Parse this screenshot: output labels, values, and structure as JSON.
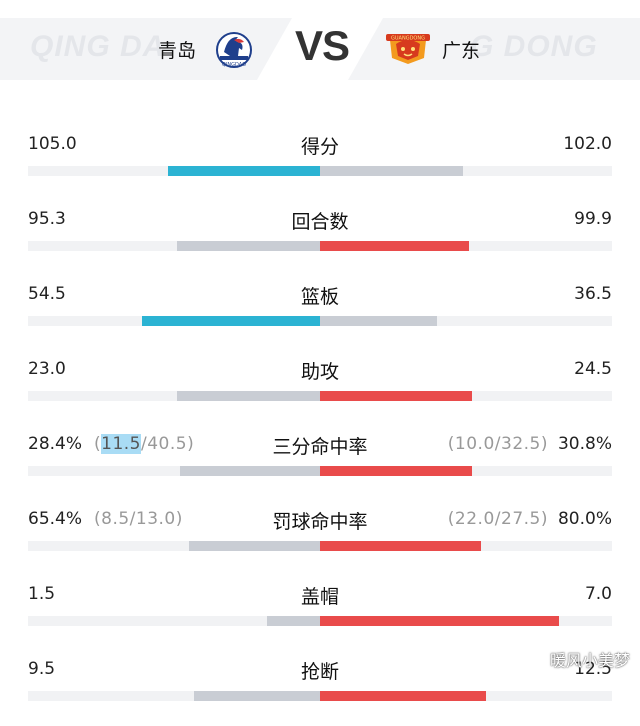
{
  "header": {
    "home_team": "青岛",
    "away_team": "广东",
    "vs": "VS",
    "home_watermark": "QING DA",
    "away_watermark": "G DONG",
    "home_logo_text": "QINGDAO",
    "away_logo_text": "GUANGDONG"
  },
  "colors": {
    "home_lead": "#2bb3d3",
    "away_lead": "#e94b4b",
    "trail": "#c9cdd4",
    "track": "#f1f2f4"
  },
  "stats": [
    {
      "label": "得分",
      "home": "105.0",
      "away": "102.0",
      "home_frac": 0.52,
      "away_frac": 0.49,
      "lead": "home"
    },
    {
      "label": "回合数",
      "home": "95.3",
      "away": "99.9",
      "home_frac": 0.49,
      "away_frac": 0.51,
      "lead": "away"
    },
    {
      "label": "篮板",
      "home": "54.5",
      "away": "36.5",
      "home_frac": 0.61,
      "away_frac": 0.4,
      "lead": "home"
    },
    {
      "label": "助攻",
      "home": "23.0",
      "away": "24.5",
      "home_frac": 0.49,
      "away_frac": 0.52,
      "lead": "away"
    },
    {
      "label": "三分命中率",
      "home": "28.4%",
      "away": "30.8%",
      "home_sub_pre": "(",
      "home_sub_hl": "11.5",
      "home_sub_post": "/40.5)",
      "away_sub": "(10.0/32.5)",
      "home_frac": 0.48,
      "away_frac": 0.52,
      "lead": "away"
    },
    {
      "label": "罚球命中率",
      "home": "65.4%",
      "away": "80.0%",
      "home_sub_pre": "(8.5/13.0)",
      "home_sub_hl": "",
      "home_sub_post": "",
      "away_sub": "(22.0/27.5)",
      "home_frac": 0.45,
      "away_frac": 0.55,
      "lead": "away"
    },
    {
      "label": "盖帽",
      "home": "1.5",
      "away": "7.0",
      "home_frac": 0.18,
      "away_frac": 0.82,
      "lead": "away"
    },
    {
      "label": "抢断",
      "home": "9.5",
      "away": "12.5",
      "home_frac": 0.43,
      "away_frac": 0.57,
      "lead": "away"
    }
  ],
  "corner_watermark": "暖风小美梦"
}
